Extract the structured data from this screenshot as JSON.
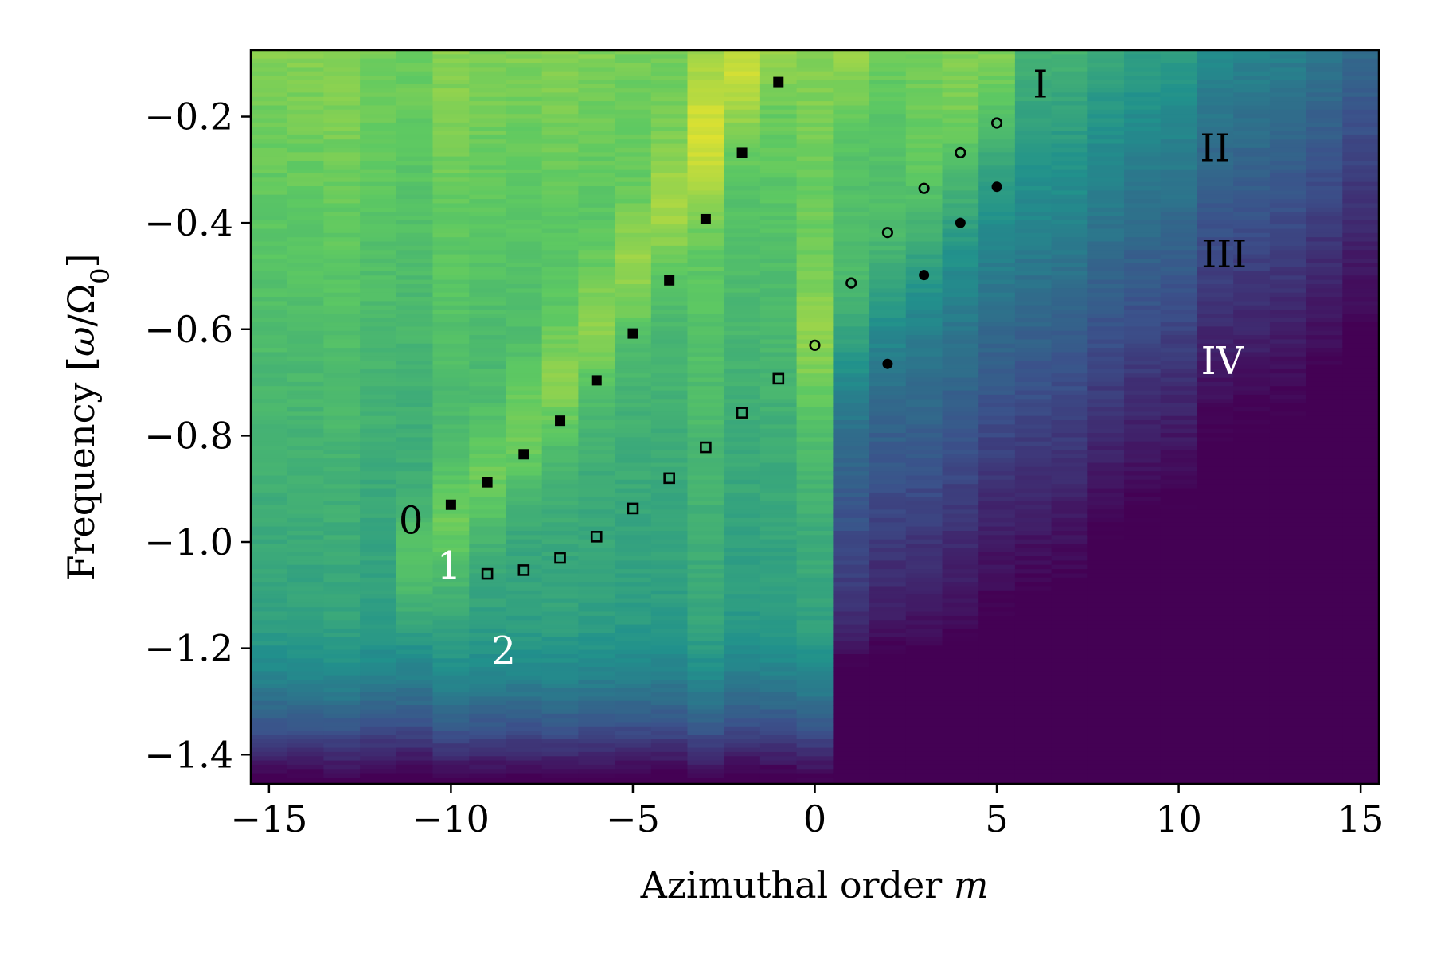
{
  "chart_data": {
    "type": "heatmap",
    "title": "",
    "xlabel_text": "Azimuthal order ",
    "xlabel_var": "m",
    "ylabel_prefix": "Frequency [",
    "ylabel_omega": "ω",
    "ylabel_slash": "/Ω",
    "ylabel_sub": "0",
    "ylabel_suffix": "]",
    "xlim": [
      -15.5,
      15.5
    ],
    "ylim": [
      -1.455,
      -0.075
    ],
    "x_ticks": [
      -15,
      -10,
      -5,
      0,
      5,
      10,
      15
    ],
    "x_tick_labels": [
      "−15",
      "−10",
      "−5",
      "0",
      "5",
      "10",
      "15"
    ],
    "y_ticks": [
      -0.2,
      -0.4,
      -0.6,
      -0.8,
      -1.0,
      -1.2,
      -1.4
    ],
    "y_tick_labels": [
      "−0.2",
      "−0.4",
      "−0.6",
      "−0.8",
      "−1.0",
      "−1.2",
      "−1.4"
    ],
    "grid": false,
    "colormap": [
      "#440154",
      "#3b528b",
      "#21918c",
      "#5ec962",
      "#fde725"
    ],
    "series": [
      {
        "marker": "filled-square",
        "x": [
          -10,
          -9,
          -8,
          -7,
          -6,
          -5,
          -4,
          -3,
          -2,
          -1
        ],
        "y": [
          -0.93,
          -0.888,
          -0.835,
          -0.772,
          -0.696,
          -0.608,
          -0.508,
          -0.393,
          -0.268,
          -0.135
        ]
      },
      {
        "marker": "open-square",
        "x": [
          -9,
          -8,
          -7,
          -6,
          -5,
          -4,
          -3,
          -2,
          -1
        ],
        "y": [
          -1.06,
          -1.053,
          -1.03,
          -0.99,
          -0.937,
          -0.88,
          -0.822,
          -0.757,
          -0.693
        ]
      },
      {
        "marker": "open-circle",
        "x": [
          0,
          1,
          2,
          3,
          4,
          5
        ],
        "y": [
          -0.63,
          -0.513,
          -0.418,
          -0.335,
          -0.268,
          -0.212
        ]
      },
      {
        "marker": "filled-circle",
        "x": [
          2,
          3,
          4,
          5
        ],
        "y": [
          -0.665,
          -0.498,
          -0.4,
          -0.332
        ]
      }
    ],
    "annotations": [
      {
        "text": "I",
        "x": 6.2,
        "y": -0.14,
        "color": "#000000"
      },
      {
        "text": "II",
        "x": 11.0,
        "y": -0.26,
        "color": "#000000"
      },
      {
        "text": "III",
        "x": 11.25,
        "y": -0.46,
        "color": "#000000"
      },
      {
        "text": "IV",
        "x": 11.2,
        "y": -0.66,
        "color": "#ffffff"
      },
      {
        "text": "0",
        "x": -11.1,
        "y": -0.96,
        "color": "#000000"
      },
      {
        "text": "1",
        "x": -10.05,
        "y": -1.045,
        "color": "#ffffff"
      },
      {
        "text": "2",
        "x": -8.55,
        "y": -1.205,
        "color": "#ffffff"
      }
    ]
  }
}
